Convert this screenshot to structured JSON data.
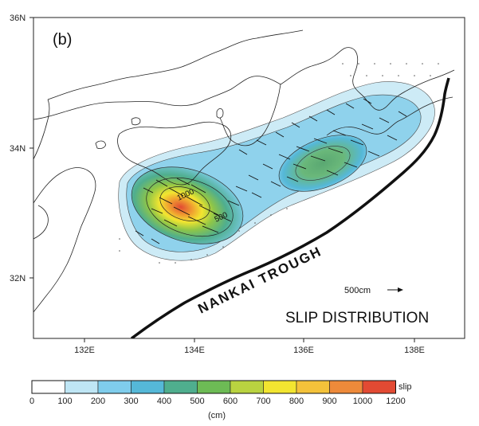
{
  "panel_label": "(b)",
  "title": "SLIP DISTRIBUTION",
  "trough_label": "NANKAI TROUGH",
  "scale_vector_label": "500cm",
  "latitude_ticks": [
    "36N",
    "34N",
    "32N"
  ],
  "longitude_ticks": [
    "132E",
    "134E",
    "136E",
    "138E"
  ],
  "contour_labels": [
    "1000",
    "500"
  ],
  "colorbar": {
    "title": "slip",
    "unit": "(cm)",
    "ticks": [
      "0",
      "100",
      "200",
      "300",
      "400",
      "500",
      "600",
      "700",
      "800",
      "900",
      "1000",
      "1200"
    ],
    "colors": [
      "#ffffff",
      "#bfe6f5",
      "#7fcdec",
      "#55b8d8",
      "#4fae8e",
      "#6dbb55",
      "#b9d340",
      "#f2e530",
      "#f4c23a",
      "#ee8a3a",
      "#e24a33"
    ]
  }
}
